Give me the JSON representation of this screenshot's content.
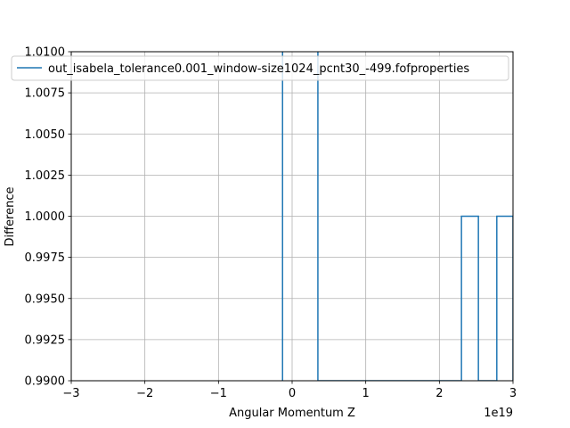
{
  "chart_data": {
    "type": "line",
    "title": "",
    "xlabel": "Angular Momentum Z",
    "ylabel": "Difference",
    "x_offset_label": "1e19",
    "xlim": [
      -3,
      3
    ],
    "ylim": [
      0.99,
      1.01
    ],
    "x_scale_exponent": 19,
    "x_ticks": [
      -3,
      -2,
      -1,
      0,
      1,
      2,
      3
    ],
    "x_tick_labels": [
      "−3",
      "−2",
      "−1",
      "0",
      "1",
      "2",
      "3"
    ],
    "y_ticks": [
      0.99,
      0.9925,
      0.995,
      0.9975,
      1.0,
      1.0025,
      1.005,
      1.0075,
      1.01
    ],
    "y_tick_labels": [
      "0.9900",
      "0.9925",
      "0.9950",
      "0.9975",
      "1.0000",
      "1.0025",
      "1.0050",
      "1.0075",
      "1.0100"
    ],
    "grid": true,
    "legend_position": "top",
    "series": [
      {
        "name": "out_isabela_tolerance0.001_window-size1024_pcnt30_-499.fofproperties",
        "color": "#1f77b4",
        "x": [
          -0.13,
          -0.13,
          0.35,
          0.35,
          2.3,
          2.3,
          2.53,
          2.53,
          2.78,
          2.78,
          3.0,
          3.0
        ],
        "y": [
          0.99,
          1.02,
          1.02,
          0.99,
          0.99,
          1.0,
          1.0,
          0.99,
          0.99,
          1.0,
          1.0,
          0.99
        ]
      }
    ]
  }
}
